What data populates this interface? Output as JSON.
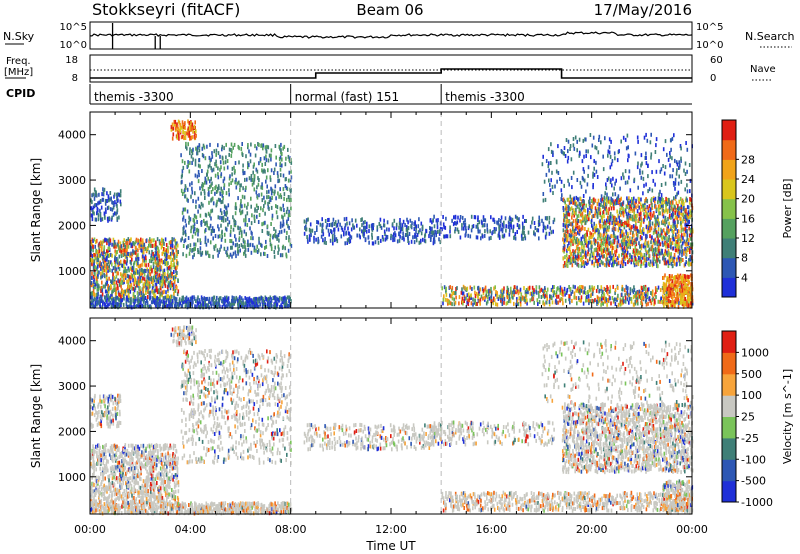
{
  "header": {
    "station": "Stokkseyri (fitACF)",
    "beam": "Beam 06",
    "date": "17/May/2016"
  },
  "top_panels": {
    "nsky_label": "N.Sky",
    "nsky_ticks": [
      "10^5",
      "10^0"
    ],
    "nsearch_label": "N.Search",
    "nsearch_ticks": [
      "10^5",
      "10^0"
    ],
    "freq_label": "Freq.",
    "freq_unit": "[MHz]",
    "freq_ticks": [
      "18",
      "8"
    ],
    "nave_label": "Nave",
    "nave_ticks": [
      "60",
      "0"
    ],
    "cpid_label": "CPID",
    "cpid_segments": [
      {
        "label": "themis -3300",
        "start_h": 0,
        "end_h": 8
      },
      {
        "label": "normal (fast) 151",
        "start_h": 8,
        "end_h": 14
      },
      {
        "label": "themis -3300",
        "start_h": 14,
        "end_h": 24
      }
    ]
  },
  "chart_data": [
    {
      "type": "heatmap",
      "title": "",
      "xlabel": "Time UT",
      "ylabel": "Slant Range [km]",
      "xlim": [
        0,
        24
      ],
      "ylim": [
        180,
        4500
      ],
      "xticks": [
        "00:00",
        "04:00",
        "08:00",
        "12:00",
        "16:00",
        "20:00",
        "00:00"
      ],
      "yticks": [
        1000,
        2000,
        3000,
        4000
      ],
      "colorbar": {
        "label": "Power [dB]",
        "ticks": [
          4,
          8,
          12,
          16,
          20,
          24,
          28
        ],
        "colors": [
          "#1f30d8",
          "#2d57b4",
          "#3f7f77",
          "#55a15f",
          "#86c24a",
          "#d9c61c",
          "#f1a319",
          "#f06a18",
          "#e01f13"
        ]
      },
      "mode_change_lines_h": [
        8,
        14
      ]
    },
    {
      "type": "heatmap",
      "title": "",
      "xlabel": "Time UT",
      "ylabel": "Slant Range [km]",
      "xlim": [
        0,
        24
      ],
      "ylim": [
        180,
        4500
      ],
      "xticks": [
        "00:00",
        "04:00",
        "08:00",
        "12:00",
        "16:00",
        "20:00",
        "00:00"
      ],
      "yticks": [
        1000,
        2000,
        3000,
        4000
      ],
      "colorbar": {
        "label": "Velocity [m s^-1]",
        "ticks": [
          "1000",
          "500",
          "100",
          "25",
          "-25",
          "-100",
          "-500",
          "-1000"
        ],
        "colors": [
          "#1f30d8",
          "#2d57b4",
          "#3f7f77",
          "#7ac45a",
          "#c8c8c2",
          "#f7a43b",
          "#f06a18",
          "#e01f13"
        ]
      },
      "mode_change_lines_h": [
        8,
        14
      ]
    }
  ]
}
